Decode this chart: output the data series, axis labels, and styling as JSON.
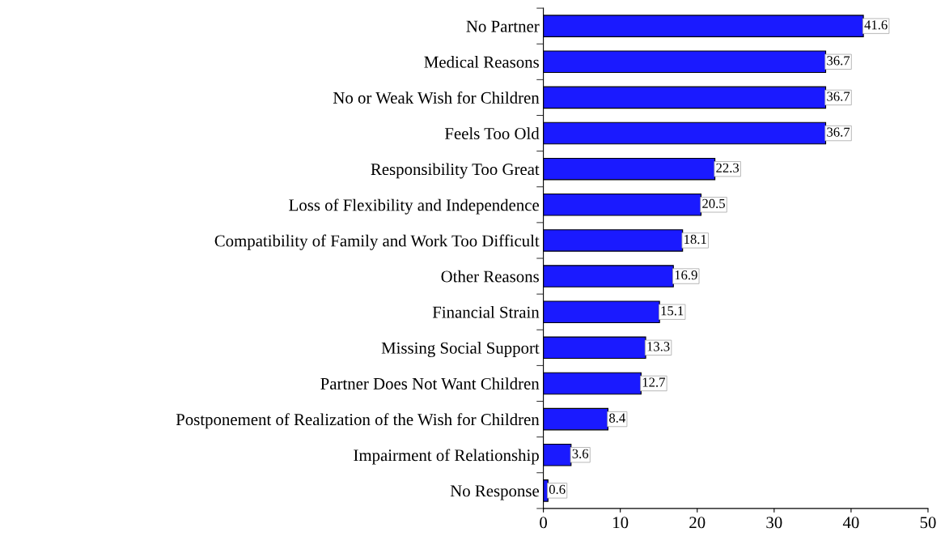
{
  "chart_data": {
    "type": "bar",
    "orientation": "horizontal",
    "categories": [
      "No Partner",
      "Medical Reasons",
      "No or Weak Wish for Children",
      "Feels Too Old",
      "Responsibility Too Great",
      "Loss of Flexibility and Independence",
      "Compatibility of Family and Work Too Difficult",
      "Other Reasons",
      "Financial Strain",
      "Missing Social Support",
      "Partner Does Not Want Children",
      "Postponement of Realization of the Wish for Children",
      "Impairment of Relationship",
      "No Response"
    ],
    "values": [
      41.6,
      36.7,
      36.7,
      36.7,
      22.3,
      20.5,
      18.1,
      16.9,
      15.1,
      13.3,
      12.7,
      8.4,
      3.6,
      0.6
    ],
    "color": "#1a1aff",
    "xlim": [
      0,
      50
    ],
    "xticks": [
      0,
      10,
      20,
      30,
      40,
      50
    ],
    "data_labels": true,
    "grid": false,
    "legend": false
  }
}
